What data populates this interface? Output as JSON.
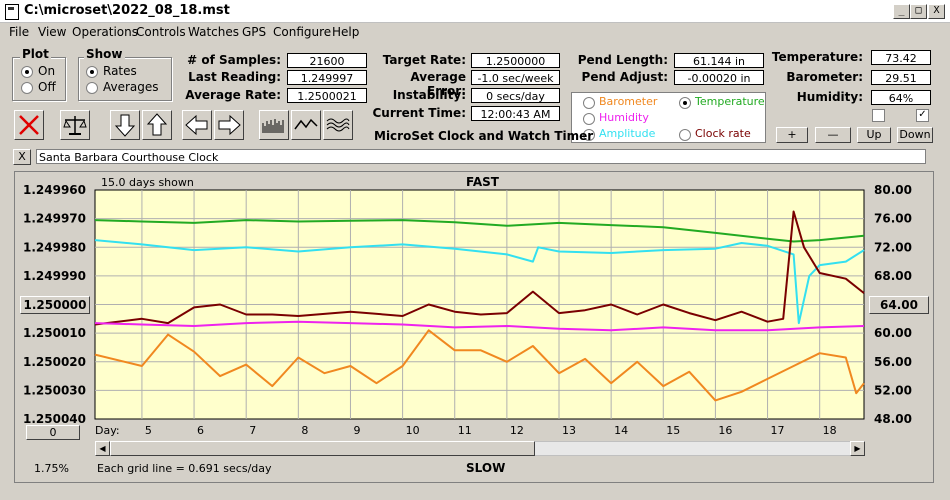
{
  "window": {
    "title": "C:\\microset\\2022_08_18.mst",
    "min": "_",
    "max": "□",
    "close": "X"
  },
  "menu": [
    "File",
    "View",
    "Operations",
    "Controls",
    "Watches",
    "GPS",
    "Configure",
    "Help"
  ],
  "plot_group": {
    "label": "Plot",
    "on": "On",
    "off": "Off",
    "selected": "On"
  },
  "show_group": {
    "label": "Show",
    "rates": "Rates",
    "averages": "Averages",
    "selected": "Rates"
  },
  "stats": {
    "samples_label": "# of Samples:",
    "samples": "21600",
    "last_label": "Last Reading:",
    "last": "1.249997",
    "avg_rate_label": "Average Rate:",
    "avg_rate": "1.2500021",
    "target_label": "Target Rate:",
    "target": "1.2500000",
    "avg_err_label": "Average Error:",
    "avg_err": "-1.0 sec/week",
    "instab_label": "Instability:",
    "instab": "0 secs/day",
    "time_label": "Current Time:",
    "time": "12:00:43 AM",
    "pend_len_label": "Pend Length:",
    "pend_len": "61.144 in",
    "pend_adj_label": "Pend Adjust:",
    "pend_adj": "-0.00020 in",
    "temp_label": "Temperature:",
    "temp": "73.42",
    "baro_label": "Barometer:",
    "baro": "29.51",
    "hum_label": "Humidity:",
    "hum": "64%"
  },
  "subtitle": "MicroSet Clock and Watch Timer",
  "series_select": {
    "barometer": "Barometer",
    "temperature": "Temperature",
    "humidity": "Humidity",
    "amplitude": "Amplitude",
    "clock_rate": "Clock rate",
    "selected": "Temperature"
  },
  "range_buttons": {
    "plus": "+",
    "minus": "—",
    "up": "Up",
    "down": "Down"
  },
  "clock_name": "Santa Barbara Courthouse Clock",
  "clear_label": "X",
  "chart_info": {
    "days_shown": "15.0 days shown",
    "fast": "FAST",
    "slow": "SLOW",
    "grid_note": "Each grid line = 0.691 secs/day",
    "left_button": "1.250000",
    "right_button": "64.00",
    "bottom_left_button": "0",
    "pct": "1.75%",
    "day_label": "Day:"
  },
  "colors": {
    "plot_bg": "#ffffcc",
    "temperature": "#22aa22",
    "humidity": "#ee22ee",
    "amplitude": "#33e0f0",
    "barometer": "#f08820",
    "clock_rate": "#7a0000"
  },
  "chart_data": {
    "type": "line",
    "x_axis": {
      "label": "Day:",
      "ticks": [
        5,
        6,
        7,
        8,
        9,
        10,
        11,
        12,
        13,
        14,
        15,
        16,
        17,
        18
      ],
      "range": [
        4.1,
        18.85
      ]
    },
    "y_left": {
      "ticks": [
        "1.249960",
        "1.249970",
        "1.249980",
        "1.249990",
        "1.250000",
        "1.250010",
        "1.250020",
        "1.250030",
        "1.250040"
      ],
      "range": [
        1.24996,
        1.25004
      ]
    },
    "y_right": {
      "ticks": [
        "80.00",
        "76.00",
        "72.00",
        "68.00",
        "64.00",
        "60.00",
        "56.00",
        "52.00",
        "48.00"
      ],
      "range": [
        48,
        80
      ]
    },
    "series": [
      {
        "name": "Temperature",
        "axis": "right",
        "color": "#22aa22",
        "x": [
          4.1,
          5,
          6,
          7,
          8,
          9,
          10,
          11,
          12,
          13,
          14,
          15,
          16,
          17,
          17.5,
          18,
          18.85
        ],
        "y": [
          75.8,
          75.6,
          75.4,
          75.8,
          75.6,
          75.7,
          75.8,
          75.5,
          75.0,
          75.4,
          75.1,
          74.8,
          74.0,
          73.2,
          72.8,
          73.0,
          73.6
        ]
      },
      {
        "name": "Amplitude",
        "axis": "right",
        "color": "#33e0f0",
        "x": [
          4.1,
          5,
          6,
          7,
          8,
          9,
          10,
          11,
          12,
          12.5,
          12.6,
          13,
          14,
          15,
          16,
          16.5,
          17,
          17.5,
          17.6,
          17.8,
          18,
          18.5,
          18.85
        ],
        "y": [
          73.0,
          72.4,
          71.6,
          72.0,
          71.4,
          72.0,
          72.4,
          71.8,
          71.0,
          70.0,
          72.0,
          71.4,
          71.2,
          71.6,
          71.8,
          72.6,
          72.2,
          71.0,
          61.4,
          68.0,
          69.5,
          70.0,
          71.6
        ]
      },
      {
        "name": "Clock rate",
        "axis": "right",
        "color": "#7a0000",
        "x": [
          4.1,
          5,
          5.5,
          6,
          6.5,
          7,
          7.5,
          8,
          9,
          10,
          10.5,
          11,
          11.5,
          12,
          12.5,
          13,
          13.5,
          14,
          14.5,
          15,
          15.5,
          16,
          16.5,
          17,
          17.3,
          17.5,
          17.7,
          18,
          18.5,
          18.85
        ],
        "y": [
          61.2,
          62.0,
          61.4,
          63.6,
          64.0,
          62.6,
          62.6,
          62.4,
          63.0,
          62.4,
          64.0,
          63.0,
          62.6,
          62.8,
          65.8,
          62.8,
          63.2,
          64.0,
          62.6,
          64.0,
          62.8,
          61.8,
          63.0,
          61.6,
          62.0,
          77.0,
          72.0,
          68.4,
          67.6,
          65.6
        ]
      },
      {
        "name": "Humidity",
        "axis": "right",
        "color": "#ee22ee",
        "x": [
          4.1,
          5,
          6,
          7,
          8,
          9,
          10,
          11,
          12,
          13,
          14,
          15,
          16,
          17,
          18,
          18.85
        ],
        "y": [
          61.4,
          61.2,
          61.0,
          61.4,
          61.6,
          61.4,
          61.2,
          60.8,
          61.0,
          60.6,
          60.4,
          60.8,
          60.4,
          60.4,
          60.8,
          61.0
        ]
      },
      {
        "name": "Barometer",
        "axis": "right",
        "color": "#f08820",
        "x": [
          4.1,
          5,
          5.5,
          6,
          6.5,
          7,
          7.5,
          8,
          8.5,
          9,
          9.5,
          10,
          10.5,
          11,
          11.5,
          12,
          12.5,
          13,
          13.5,
          14,
          14.5,
          15,
          15.5,
          16,
          16.5,
          17,
          17.5,
          18,
          18.5,
          18.7,
          18.85
        ],
        "y": [
          57.0,
          55.4,
          59.8,
          57.4,
          54.0,
          55.6,
          52.6,
          56.6,
          54.4,
          55.4,
          53.0,
          55.4,
          60.4,
          57.6,
          57.6,
          56.0,
          58.2,
          54.4,
          56.4,
          53.0,
          56.0,
          52.6,
          54.6,
          50.6,
          51.8,
          53.6,
          55.4,
          57.2,
          56.6,
          51.6,
          53.0
        ]
      }
    ]
  }
}
